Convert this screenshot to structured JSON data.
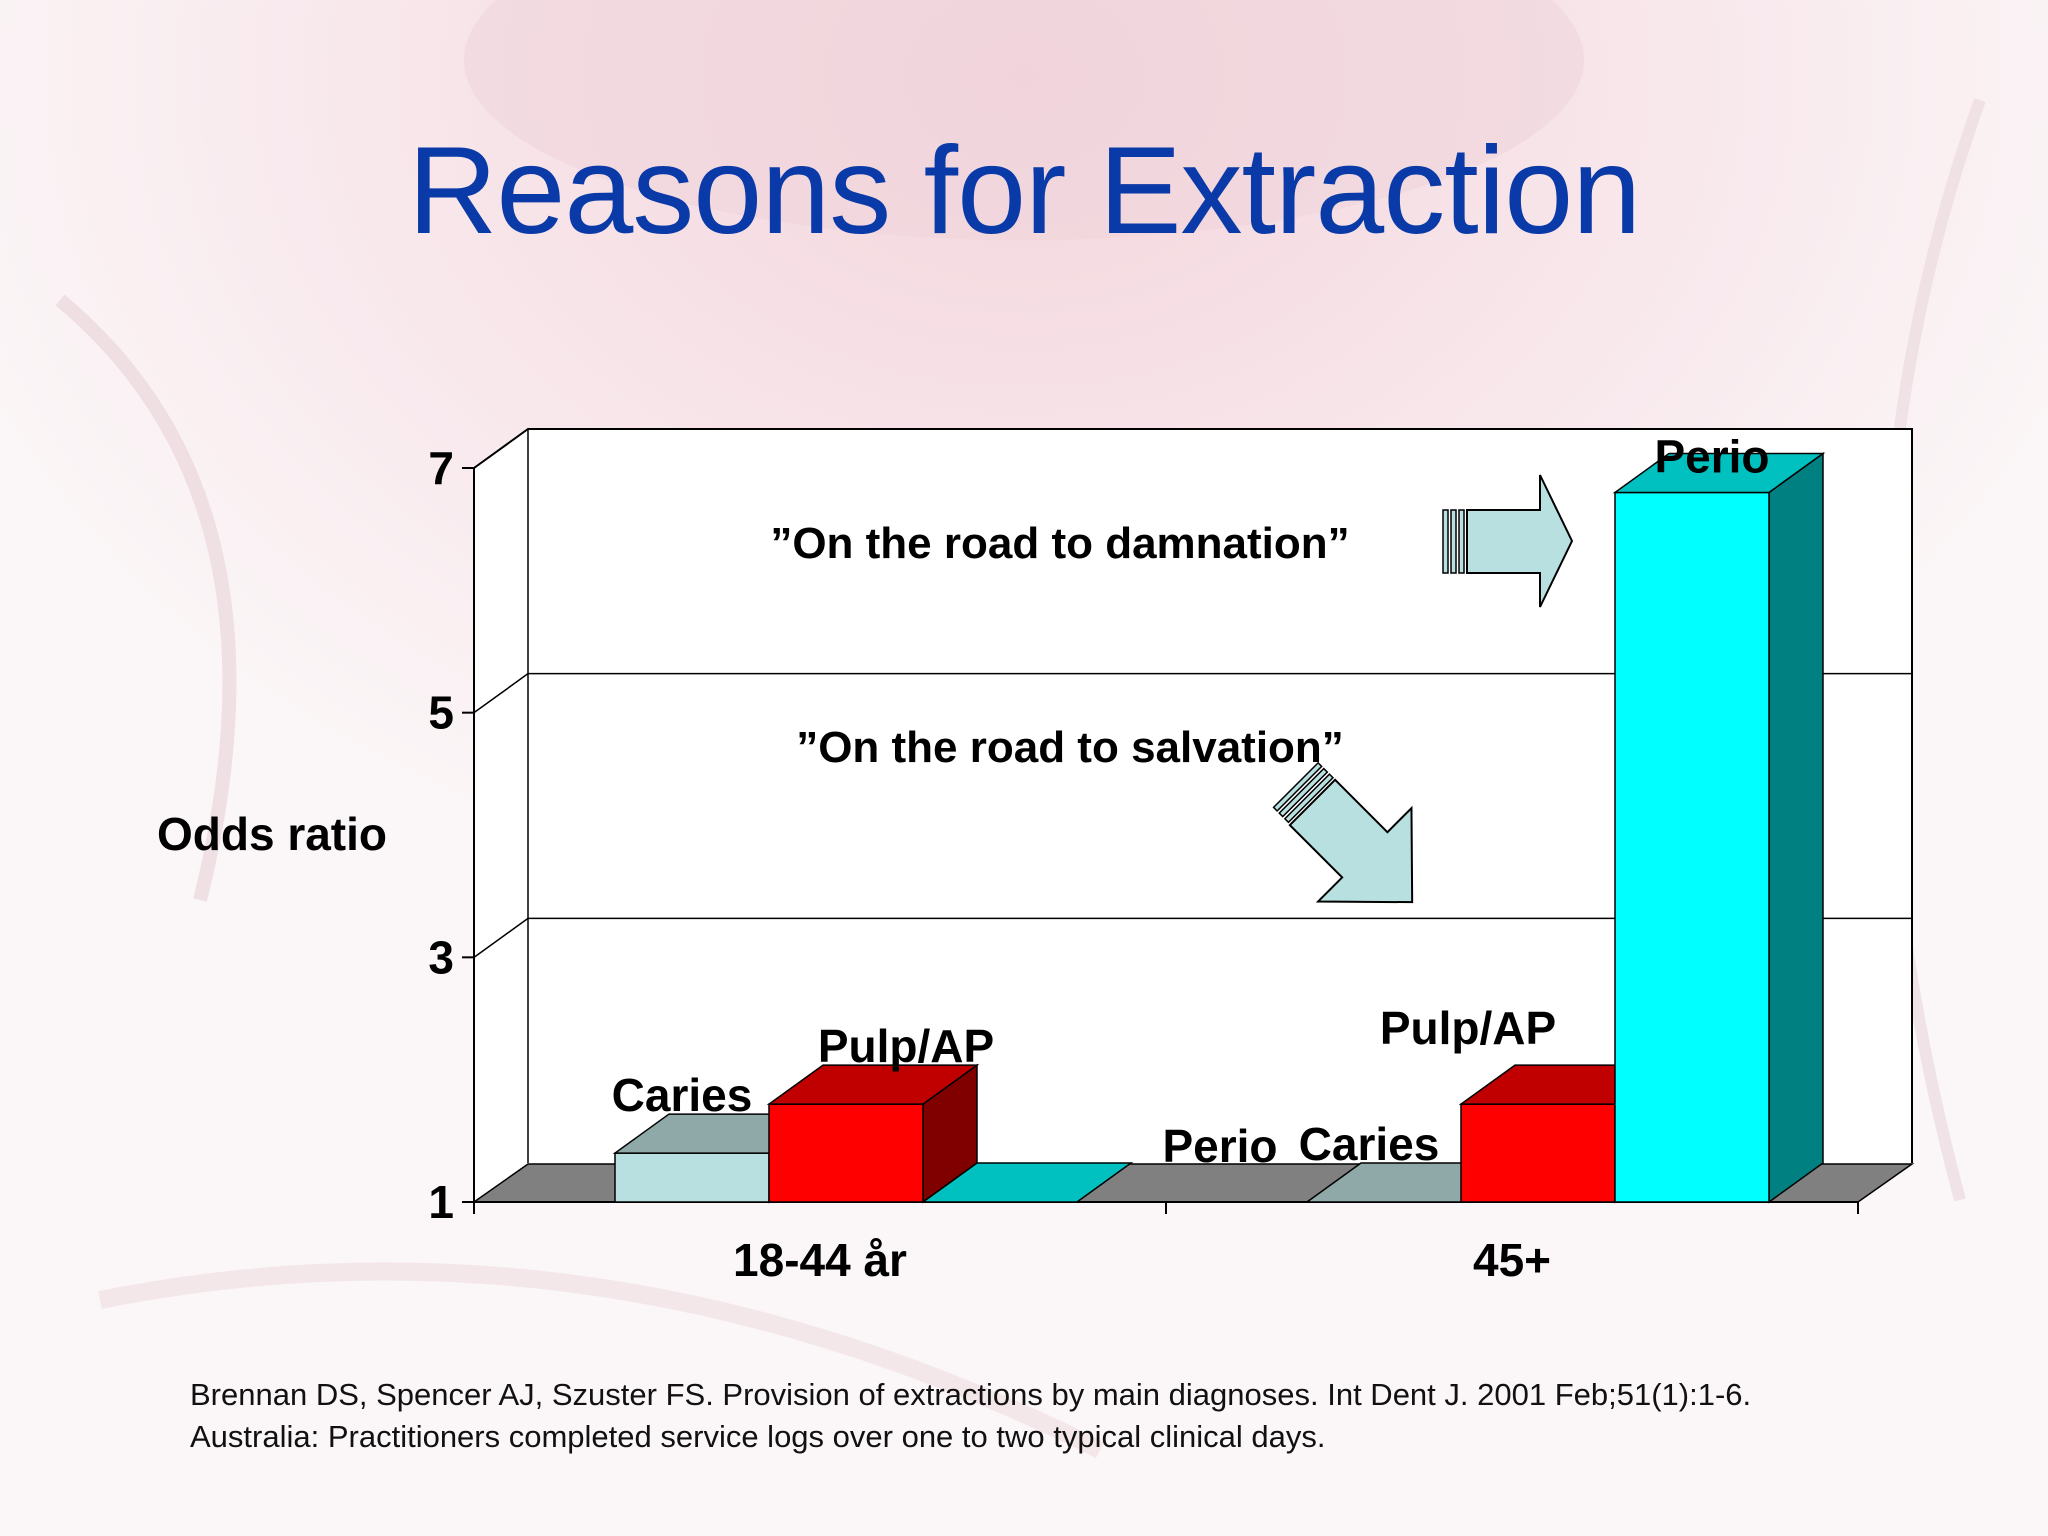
{
  "slide": {
    "title": "Reasons for Extraction",
    "citation_line1": "Brennan DS, Spencer AJ, Szuster FS. Provision of extractions by main diagnoses. Int Dent J. 2001 Feb;51(1):1-6.",
    "citation_line2": "Australia: Practitioners completed service logs over one to two typical clinical days."
  },
  "colors": {
    "title": "#0a3aa8",
    "caries_front": "#b8e0e0",
    "caries_top": "#8fa8a8",
    "pulp_front": "#ff0000",
    "pulp_top": "#c00000",
    "pulp_side": "#800000",
    "perio_front": "#00ffff",
    "perio_top": "#00c0c0",
    "perio_side": "#008080",
    "floor": "#808080",
    "arrow": "#b8e0e0"
  },
  "chart_data": {
    "type": "bar",
    "ylabel": "Odds ratio",
    "ylim": [
      1,
      7
    ],
    "yticks": [
      "1",
      "3",
      "5",
      "7"
    ],
    "categories": [
      "18-44 år",
      "45+"
    ],
    "series": [
      {
        "name": "Caries",
        "values": [
          1.4,
          1.0
        ]
      },
      {
        "name": "Pulp/AP",
        "values": [
          1.8,
          1.8
        ]
      },
      {
        "name": "Perio",
        "values": [
          1.0,
          6.8
        ]
      }
    ],
    "bar_labels": [
      [
        "Caries",
        "Pulp/AP",
        "Perio"
      ],
      [
        "Caries",
        "Pulp/AP",
        "Perio"
      ]
    ],
    "annotations": [
      "”On the road to damnation”",
      "”On the road to salvation”"
    ],
    "grid": true
  }
}
